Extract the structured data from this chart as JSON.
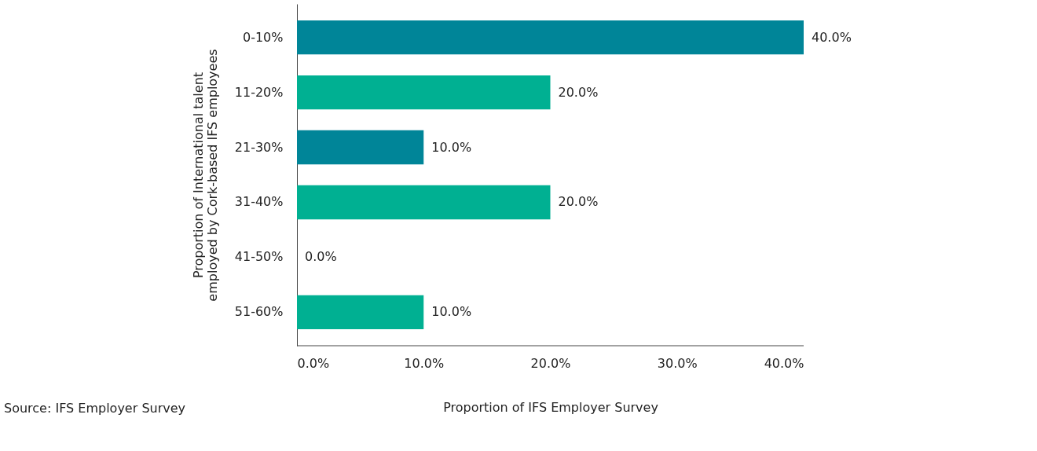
{
  "chart_data": {
    "type": "bar",
    "orientation": "horizontal",
    "categories": [
      "0-10%",
      "11-20%",
      "21-30%",
      "31-40%",
      "41-50%",
      "51-60%"
    ],
    "values": [
      40,
      20,
      10,
      20,
      0,
      10
    ],
    "colors": [
      "#008598",
      "#00b092",
      "#008598",
      "#00b092",
      "#008598",
      "#00b092"
    ],
    "value_labels": [
      "40.0%",
      "20.0%",
      "10.0%",
      "20.0%",
      "0.0%",
      "10.0%"
    ],
    "xlim": [
      0,
      40
    ],
    "xticks": [
      {
        "value": 0,
        "label": "0.0%"
      },
      {
        "value": 10,
        "label": "10.0%"
      },
      {
        "value": 20,
        "label": "20.0%"
      },
      {
        "value": 30,
        "label": "30.0%"
      },
      {
        "value": 40,
        "label": "40.0%"
      }
    ],
    "xlabel": "Proportion of IFS Employer Survey",
    "ylabel": "Proportion of International talent employed by Cork-based IFS employees",
    "annotations": [
      "Source: IFS Employer Survey"
    ],
    "grid": false,
    "legend": false
  }
}
